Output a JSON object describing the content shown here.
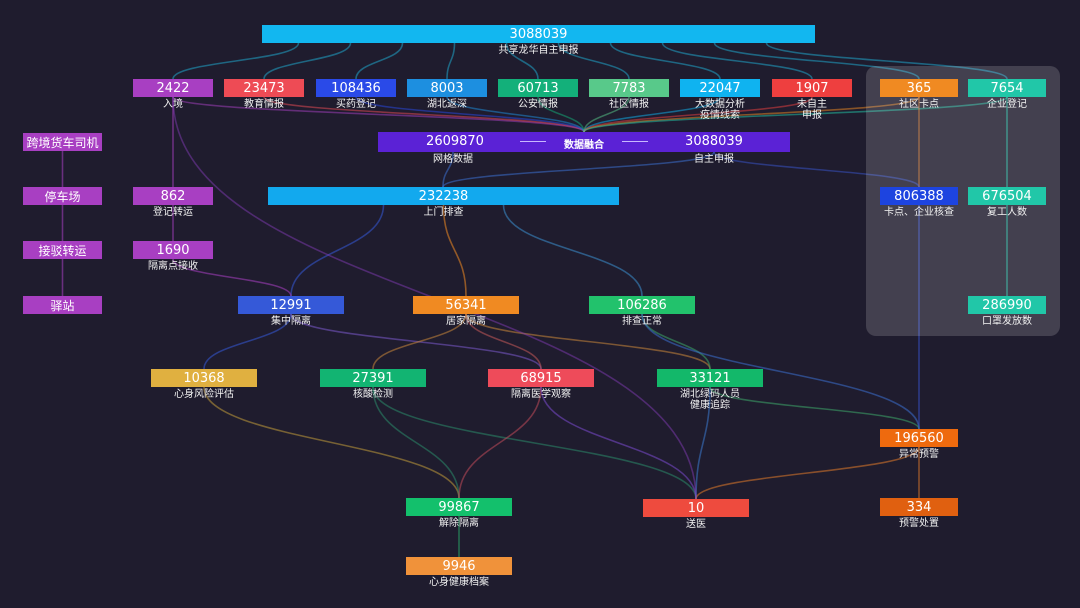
{
  "top": {
    "value": "3088039",
    "label": "共享龙华自主申报"
  },
  "sources": [
    {
      "value": "2422",
      "label": "入境"
    },
    {
      "value": "23473",
      "label": "教育情报"
    },
    {
      "value": "108436",
      "label": "买药登记"
    },
    {
      "value": "8003",
      "label": "湖北返深"
    },
    {
      "value": "60713",
      "label": "公安情报"
    },
    {
      "value": "7783",
      "label": "社区情报"
    },
    {
      "value": "22047",
      "label": "大数据分析\n疫情线索"
    },
    {
      "value": "1907",
      "label": "未自主\n申报"
    }
  ],
  "panel": [
    {
      "value": "365",
      "label": "社区卡点"
    },
    {
      "value": "7654",
      "label": "企业登记"
    },
    {
      "value": "806388",
      "label": "卡点、企业核查"
    },
    {
      "value": "676504",
      "label": "复工人数"
    },
    {
      "value": "286990",
      "label": "口罩发放数"
    }
  ],
  "fusion": {
    "left_value": "2609870",
    "left_label": "网格数据",
    "center": "数据融合",
    "right_value": "3088039",
    "right_label": "自主申报"
  },
  "left_chain": [
    "跨境货车司机",
    "停车场",
    "接驳转运",
    "驿站"
  ],
  "register": {
    "value": "862",
    "label": "登记转运"
  },
  "receive": {
    "value": "1690",
    "label": "隔离点接收"
  },
  "door": {
    "value": "232238",
    "label": "上门排查"
  },
  "central": {
    "value": "12991",
    "label": "集中隔离"
  },
  "home": {
    "value": "56341",
    "label": "居家隔离"
  },
  "normal": {
    "value": "106286",
    "label": "排查正常"
  },
  "psych": {
    "value": "10368",
    "label": "心身风险评估"
  },
  "nucleic": {
    "value": "27391",
    "label": "核酸检测"
  },
  "medical": {
    "value": "68915",
    "label": "隔离医学观察"
  },
  "hubei": {
    "value": "33121",
    "label": "湖北绿码人员\n健康追踪"
  },
  "alert": {
    "value": "196560",
    "label": "异常预警"
  },
  "release": {
    "value": "99867",
    "label": "解除隔离"
  },
  "hospital": {
    "value": "10",
    "label": "送医"
  },
  "handle": {
    "value": "334",
    "label": "预警处置"
  },
  "archive": {
    "value": "9946",
    "label": "心身健康档案"
  },
  "colors": {
    "background": "#1f1c2e",
    "panel": "#3a3848",
    "purple": "#a83fc2",
    "cyan": "#12b7f0",
    "blue": "#2a4ae8",
    "green": "#13b86a",
    "red": "#ee4b55",
    "orange": "#f08a22"
  }
}
